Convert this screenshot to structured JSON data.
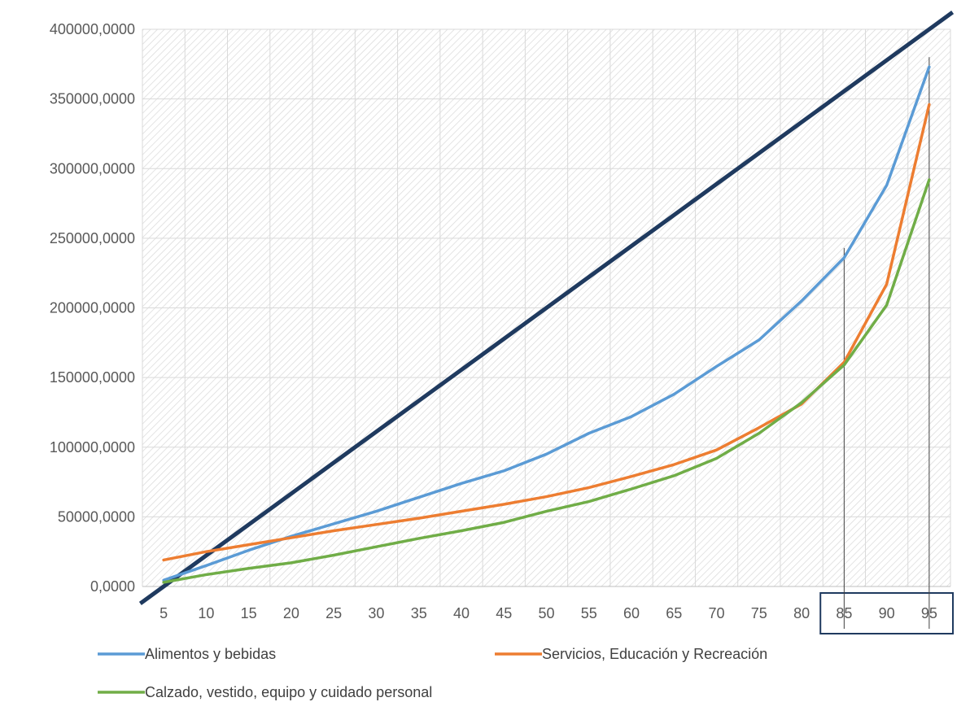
{
  "chart_data": {
    "type": "line",
    "title": "",
    "xlabel": "",
    "ylabel": "",
    "categories": [
      "5",
      "10",
      "15",
      "20",
      "25",
      "30",
      "35",
      "40",
      "45",
      "50",
      "55",
      "60",
      "65",
      "70",
      "75",
      "80",
      "85",
      "90",
      "95"
    ],
    "ylim": [
      0,
      400000
    ],
    "y_ticks": [
      "0,0000",
      "50000,0000",
      "100000,0000",
      "150000,0000",
      "200000,0000",
      "250000,0000",
      "300000,0000",
      "350000,0000",
      "400000,0000"
    ],
    "grid": true,
    "legend_position": "bottom",
    "highlighted_categories": [
      "85",
      "90",
      "95"
    ],
    "reference_line": {
      "x": [
        "5",
        "95"
      ],
      "y": [
        0,
        400000
      ],
      "color": "#1f3a5f"
    },
    "series": [
      {
        "name": "Alimentos y bebidas",
        "color": "#5b9bd5",
        "values": [
          4500,
          15000,
          26000,
          36000,
          45000,
          54000,
          64000,
          74000,
          83000,
          95000,
          110000,
          122000,
          138000,
          158000,
          177000,
          205000,
          236000,
          288000,
          373000
        ]
      },
      {
        "name": "Servicios, Educación y Recreación",
        "color": "#ed7d31",
        "values": [
          19000,
          25000,
          30000,
          35000,
          40000,
          44500,
          49000,
          54000,
          59000,
          64500,
          71000,
          79000,
          87500,
          98000,
          114000,
          131000,
          161000,
          217000,
          346000
        ]
      },
      {
        "name": "Calzado, vestido, equipo y cuidado personal",
        "color": "#70ad47",
        "values": [
          3000,
          8500,
          13000,
          17000,
          22500,
          28500,
          34500,
          40000,
          46000,
          54000,
          61000,
          70000,
          79500,
          92000,
          110000,
          132000,
          159000,
          202000,
          292000
        ]
      }
    ]
  }
}
